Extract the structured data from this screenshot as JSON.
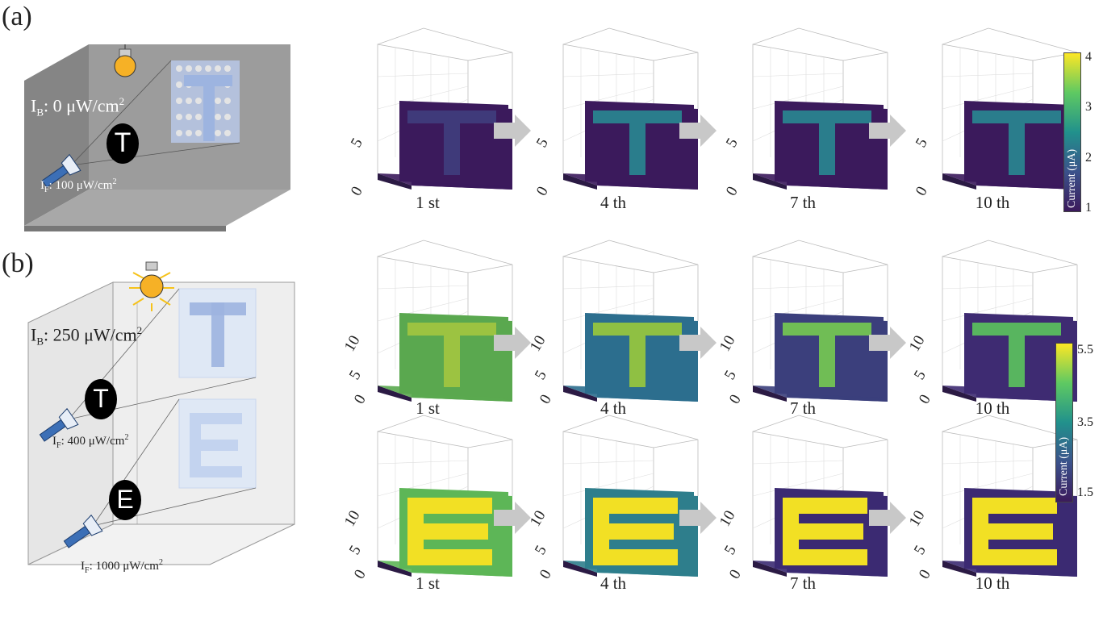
{
  "panels": [
    {
      "tag": "(a)",
      "background_label": "I",
      "background_sub": "B",
      "background_value": ": 0 μW/cm",
      "background_sup": "2",
      "foreground_label": "I",
      "foreground_sub": "F",
      "foreground_value": ": 100 μW/cm",
      "foreground_sup": "2",
      "letter": "T"
    },
    {
      "tag": "(b)",
      "background_label": "I",
      "background_sub": "B",
      "background_value": ": 250 μW/cm",
      "background_sup": "2",
      "foreground_t_label": "I",
      "foreground_t_sub": "F",
      "foreground_t_value": ": 400 μW/cm",
      "foreground_t_sup": "2",
      "foreground_e_label": "I",
      "foreground_e_sub": "F",
      "foreground_e_value": ": 1000 μW/cm",
      "foreground_e_sup": "2",
      "letter_t": "T",
      "letter_e": "E"
    }
  ],
  "iterations": [
    "1 st",
    "4 th",
    "7 th",
    "10 th"
  ],
  "axis_ticks": {
    "a": [
      "5",
      "0"
    ],
    "b": [
      "10",
      "5",
      "0"
    ]
  },
  "colorbars": [
    {
      "title": "Current (μA)",
      "ticks": [
        "4",
        "3",
        "2",
        "1"
      ]
    },
    {
      "title": "Current (μA)",
      "ticks": [
        "5.5",
        "3.5",
        "1.5"
      ]
    }
  ],
  "colors": {
    "viridis_low": "#3b1a5c",
    "viridis_mid": "#26828e",
    "viridis_high": "#fde725",
    "arrow": "#c8c8c8",
    "room_dark": "#8a8a8a",
    "room_light": "#e8e8e8"
  }
}
